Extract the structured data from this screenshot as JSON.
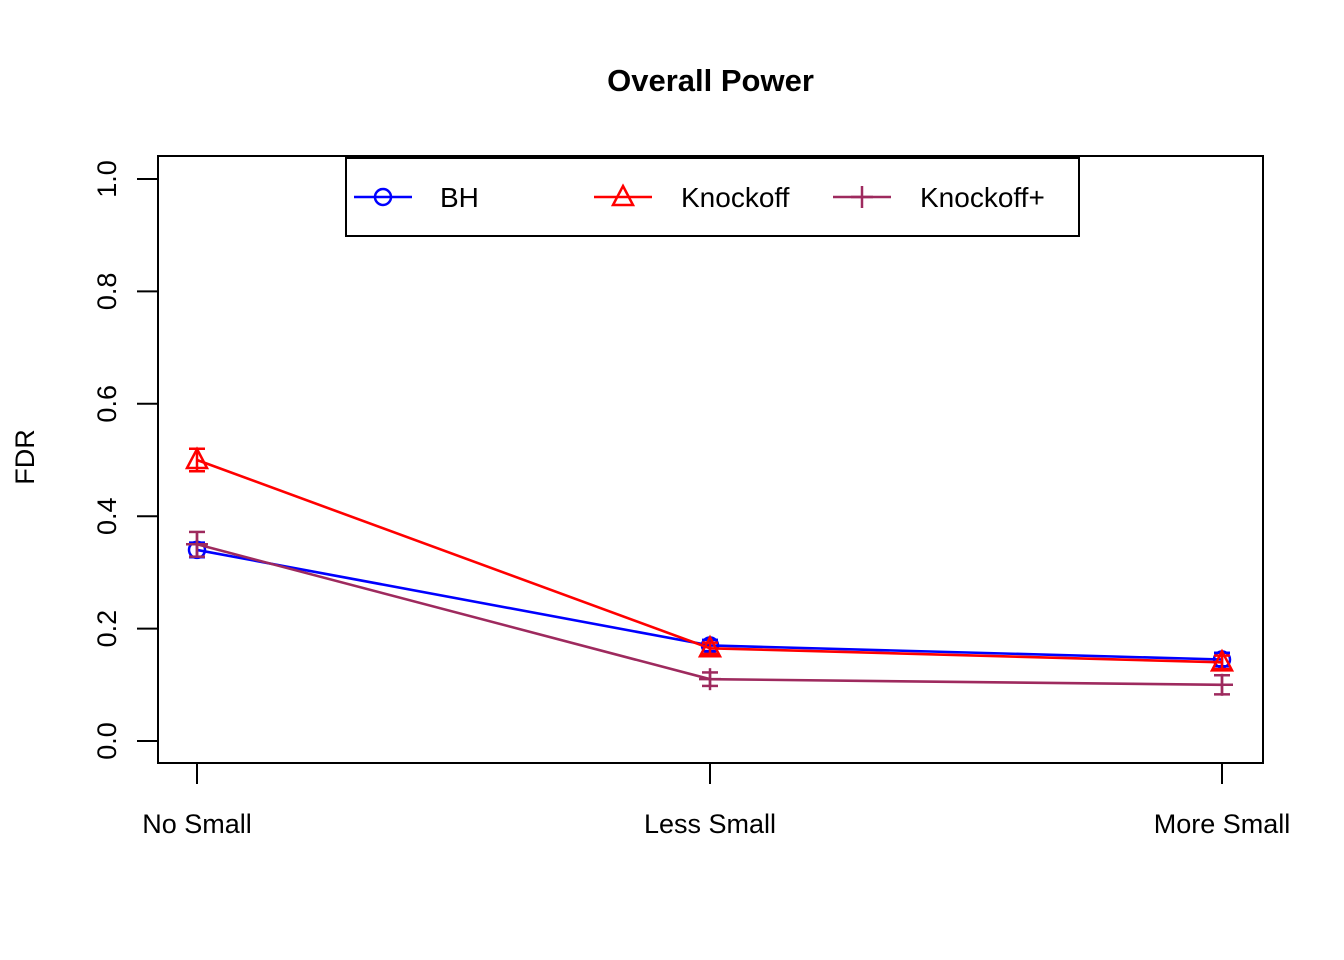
{
  "title": "Overall Power",
  "chart_data": {
    "type": "line",
    "title": "Overall Power",
    "xlabel": "",
    "ylabel": "FDR",
    "categories": [
      "No Small",
      "Less Small",
      "More Small"
    ],
    "ylim": [
      0.0,
      1.0
    ],
    "yticks": [
      0.0,
      0.2,
      0.4,
      0.6,
      0.8,
      1.0
    ],
    "ytick_labels": [
      "0.0",
      "0.2",
      "0.4",
      "0.6",
      "0.8",
      "1.0"
    ],
    "grid": false,
    "legend_position": "top-inside",
    "axis_color": "#000000",
    "background_color": "#ffffff",
    "series": [
      {
        "name": "BH",
        "color": "#0000FF",
        "marker": "circle",
        "values": [
          0.34,
          0.17,
          0.145
        ],
        "errors": [
          0.013,
          0.01,
          0.012
        ]
      },
      {
        "name": "Knockoff",
        "color": "#FF0000",
        "marker": "triangle",
        "values": [
          0.5,
          0.165,
          0.14
        ],
        "errors": [
          0.02,
          0.01,
          0.012
        ]
      },
      {
        "name": "Knockoff+",
        "color": "#9E2A5E",
        "marker": "plus",
        "values": [
          0.35,
          0.11,
          0.1
        ],
        "errors": [
          0.022,
          0.012,
          0.017
        ]
      }
    ]
  }
}
